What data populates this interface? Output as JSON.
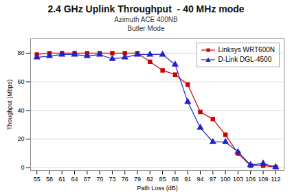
{
  "chart_data": {
    "type": "line",
    "title": "2.4 GHz Uplink Throughput  - 40 MHz mode",
    "subtitle": [
      "Azimuth ACE 400NB",
      "Butler Mode"
    ],
    "x_label": "Path Loss (dB)",
    "y_label": "Thoughput (Mbps)",
    "x": [
      55,
      58,
      61,
      64,
      67,
      70,
      73,
      76,
      79,
      82,
      85,
      88,
      91,
      94,
      97,
      100,
      103,
      106,
      109,
      112
    ],
    "series": [
      {
        "name": "Linksys WRT600N",
        "color": "#cc0000",
        "marker": "square",
        "values": [
          79,
          80,
          80,
          80,
          80,
          80,
          80,
          80,
          80,
          74,
          68,
          65,
          58,
          39,
          34,
          23,
          10,
          1.5,
          1.5,
          0.5
        ]
      },
      {
        "name": "D-Link DGL-4500",
        "color": "#2222cc",
        "marker": "triangle",
        "values": [
          77,
          78,
          79,
          79,
          78,
          79,
          76,
          77,
          79,
          79,
          79,
          72,
          46,
          28,
          18,
          18,
          11,
          2,
          3,
          0.5
        ]
      }
    ],
    "xlim": [
      53.5,
      114
    ],
    "xticks": [
      55,
      58,
      61,
      64,
      67,
      70,
      73,
      76,
      79,
      82,
      85,
      88,
      91,
      94,
      97,
      100,
      103,
      106,
      109,
      112
    ],
    "ylim": [
      -2,
      90
    ],
    "yticks": [
      0,
      20,
      40,
      60,
      80
    ],
    "grid": "y",
    "legend": "upper right"
  }
}
